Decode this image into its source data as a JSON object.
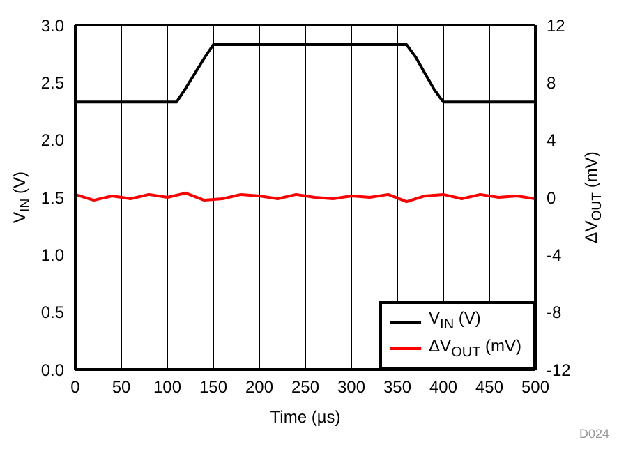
{
  "chart_data": {
    "type": "line",
    "xlabel": "Time (µs)",
    "ylabel": "V$_{IN}$ (V)",
    "y2label": "ΔV$_{OUT}$ (mV)",
    "xlim": [
      0,
      500
    ],
    "xticks": [
      0,
      50,
      100,
      150,
      200,
      250,
      300,
      350,
      400,
      450,
      500
    ],
    "ylim": [
      0,
      3
    ],
    "yticks": [
      {
        "value": 0,
        "label": "0.0"
      },
      {
        "value": 0.5,
        "label": "0.5"
      },
      {
        "value": 1,
        "label": "1.0"
      },
      {
        "value": 1.5,
        "label": "1.5"
      },
      {
        "value": 2,
        "label": "2.0"
      },
      {
        "value": 2.5,
        "label": "2.5"
      },
      {
        "value": 3,
        "label": "3.0"
      }
    ],
    "y2lim": [
      -12,
      12
    ],
    "y2ticks": [
      -12,
      -8,
      -4,
      0,
      4,
      8,
      12
    ],
    "grid": true,
    "legend": "bottom right",
    "marker": "none",
    "line_style": "solid",
    "annotations": [
      "D024"
    ],
    "series": [
      {
        "name": "V$_{IN}$ (V)",
        "color": "#000000",
        "x": [
          0,
          50,
          100,
          110,
          120,
          130,
          140,
          150,
          200,
          250,
          300,
          350,
          360,
          370,
          380,
          390,
          400,
          450,
          500
        ],
        "values": [
          2.33,
          2.33,
          2.33,
          2.33,
          2.45,
          2.58,
          2.71,
          2.83,
          2.83,
          2.83,
          2.83,
          2.83,
          2.83,
          2.72,
          2.58,
          2.44,
          2.33,
          2.33,
          2.33
        ]
      },
      {
        "name": "ΔV$_{OUT}$ (mV)",
        "color": "#ff0000",
        "axis": "y2",
        "x": [
          0,
          20,
          40,
          60,
          80,
          100,
          120,
          140,
          160,
          180,
          200,
          220,
          240,
          260,
          280,
          300,
          320,
          340,
          360,
          380,
          400,
          420,
          440,
          460,
          480,
          500
        ],
        "values": [
          0.2,
          -0.2,
          0.1,
          -0.1,
          0.2,
          0,
          0.3,
          -0.2,
          -0.1,
          0.2,
          0.1,
          -0.1,
          0.2,
          0,
          -0.1,
          0.1,
          0,
          0.2,
          -0.3,
          0.1,
          0.2,
          -0.1,
          0.2,
          0,
          0.1,
          -0.1
        ]
      }
    ]
  }
}
